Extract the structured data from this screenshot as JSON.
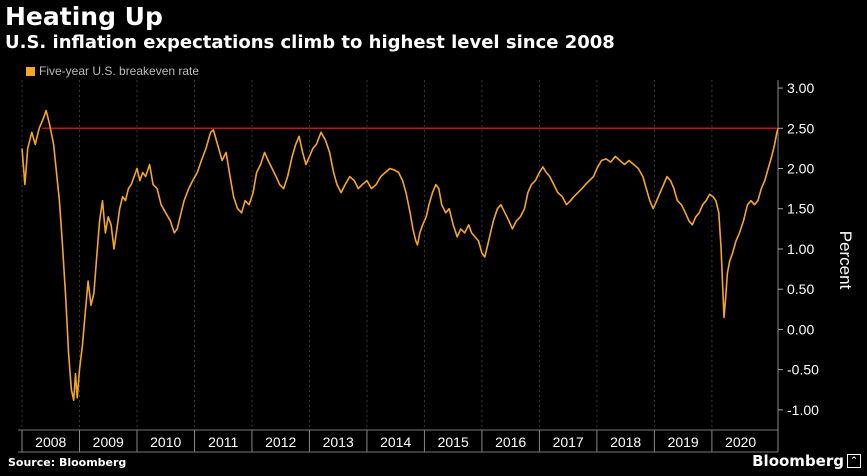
{
  "header": {
    "title": "Heating Up",
    "subtitle": "U.S. inflation expectations climb to highest level since 2008"
  },
  "footer": {
    "source": "Source: Bloomberg",
    "brand": "Bloomberg"
  },
  "colors": {
    "series": "#f5a623",
    "reference_line": "#c0141b",
    "grid": "#3a3a3a",
    "background": "#000000"
  },
  "chart_data": {
    "type": "line",
    "title": "Heating Up",
    "subtitle": "U.S. inflation expectations climb to highest level since 2008",
    "ylabel": "Percent",
    "xlabel": "",
    "ylim": [
      -1.25,
      3.1
    ],
    "y_ticks": [
      "3.00",
      "2.50",
      "2.00",
      "1.50",
      "1.00",
      "0.50",
      "0.00",
      "-0.50",
      "-1.00"
    ],
    "x_ticks": [
      "2008",
      "2009",
      "2010",
      "2011",
      "2012",
      "2013",
      "2014",
      "2015",
      "2016",
      "2017",
      "2018",
      "2019",
      "2020"
    ],
    "x_range": [
      2008.0,
      2021.15
    ],
    "grid": "vertical dashed at year boundaries",
    "legend_position": "top-left",
    "reference_line": {
      "y": 2.5,
      "label": ""
    },
    "series": [
      {
        "name": "Five-year U.S. breakeven rate",
        "points": [
          [
            2008.0,
            2.25
          ],
          [
            2008.05,
            1.8
          ],
          [
            2008.1,
            2.25
          ],
          [
            2008.17,
            2.45
          ],
          [
            2008.23,
            2.3
          ],
          [
            2008.3,
            2.5
          ],
          [
            2008.37,
            2.62
          ],
          [
            2008.42,
            2.72
          ],
          [
            2008.48,
            2.55
          ],
          [
            2008.55,
            2.3
          ],
          [
            2008.6,
            1.95
          ],
          [
            2008.65,
            1.6
          ],
          [
            2008.7,
            1.1
          ],
          [
            2008.76,
            0.4
          ],
          [
            2008.81,
            -0.3
          ],
          [
            2008.86,
            -0.75
          ],
          [
            2008.9,
            -0.88
          ],
          [
            2008.93,
            -0.55
          ],
          [
            2008.96,
            -0.85
          ],
          [
            2009.0,
            -0.5
          ],
          [
            2009.05,
            -0.2
          ],
          [
            2009.1,
            0.2
          ],
          [
            2009.15,
            0.6
          ],
          [
            2009.2,
            0.3
          ],
          [
            2009.25,
            0.45
          ],
          [
            2009.3,
            0.9
          ],
          [
            2009.35,
            1.35
          ],
          [
            2009.4,
            1.6
          ],
          [
            2009.45,
            1.2
          ],
          [
            2009.5,
            1.4
          ],
          [
            2009.55,
            1.3
          ],
          [
            2009.6,
            1.0
          ],
          [
            2009.65,
            1.25
          ],
          [
            2009.7,
            1.5
          ],
          [
            2009.75,
            1.65
          ],
          [
            2009.8,
            1.6
          ],
          [
            2009.85,
            1.75
          ],
          [
            2009.9,
            1.8
          ],
          [
            2009.95,
            1.9
          ],
          [
            2010.0,
            2.0
          ],
          [
            2010.05,
            1.85
          ],
          [
            2010.1,
            1.95
          ],
          [
            2010.15,
            1.9
          ],
          [
            2010.22,
            2.05
          ],
          [
            2010.28,
            1.8
          ],
          [
            2010.35,
            1.75
          ],
          [
            2010.42,
            1.55
          ],
          [
            2010.5,
            1.45
          ],
          [
            2010.58,
            1.35
          ],
          [
            2010.65,
            1.2
          ],
          [
            2010.7,
            1.25
          ],
          [
            2010.75,
            1.4
          ],
          [
            2010.82,
            1.6
          ],
          [
            2010.9,
            1.75
          ],
          [
            2010.97,
            1.85
          ],
          [
            2011.05,
            1.95
          ],
          [
            2011.12,
            2.1
          ],
          [
            2011.2,
            2.25
          ],
          [
            2011.28,
            2.45
          ],
          [
            2011.33,
            2.48
          ],
          [
            2011.4,
            2.3
          ],
          [
            2011.48,
            2.1
          ],
          [
            2011.55,
            2.2
          ],
          [
            2011.62,
            1.9
          ],
          [
            2011.68,
            1.65
          ],
          [
            2011.75,
            1.5
          ],
          [
            2011.82,
            1.45
          ],
          [
            2011.88,
            1.6
          ],
          [
            2011.95,
            1.55
          ],
          [
            2012.02,
            1.7
          ],
          [
            2012.08,
            1.95
          ],
          [
            2012.15,
            2.05
          ],
          [
            2012.22,
            2.2
          ],
          [
            2012.28,
            2.1
          ],
          [
            2012.35,
            2.0
          ],
          [
            2012.42,
            1.9
          ],
          [
            2012.48,
            1.8
          ],
          [
            2012.55,
            1.75
          ],
          [
            2012.62,
            1.9
          ],
          [
            2012.7,
            2.15
          ],
          [
            2012.76,
            2.3
          ],
          [
            2012.82,
            2.4
          ],
          [
            2012.88,
            2.2
          ],
          [
            2012.94,
            2.05
          ],
          [
            2013.0,
            2.15
          ],
          [
            2013.06,
            2.25
          ],
          [
            2013.12,
            2.3
          ],
          [
            2013.2,
            2.45
          ],
          [
            2013.28,
            2.35
          ],
          [
            2013.35,
            2.2
          ],
          [
            2013.42,
            1.95
          ],
          [
            2013.48,
            1.8
          ],
          [
            2013.55,
            1.7
          ],
          [
            2013.62,
            1.8
          ],
          [
            2013.7,
            1.9
          ],
          [
            2013.78,
            1.85
          ],
          [
            2013.85,
            1.75
          ],
          [
            2013.92,
            1.8
          ],
          [
            2014.0,
            1.85
          ],
          [
            2014.08,
            1.75
          ],
          [
            2014.16,
            1.8
          ],
          [
            2014.24,
            1.9
          ],
          [
            2014.32,
            1.95
          ],
          [
            2014.4,
            2.0
          ],
          [
            2014.48,
            1.98
          ],
          [
            2014.55,
            1.95
          ],
          [
            2014.62,
            1.85
          ],
          [
            2014.68,
            1.7
          ],
          [
            2014.75,
            1.45
          ],
          [
            2014.8,
            1.25
          ],
          [
            2014.85,
            1.1
          ],
          [
            2014.88,
            1.05
          ],
          [
            2014.92,
            1.2
          ],
          [
            2014.97,
            1.3
          ],
          [
            2015.03,
            1.4
          ],
          [
            2015.08,
            1.55
          ],
          [
            2015.14,
            1.7
          ],
          [
            2015.2,
            1.8
          ],
          [
            2015.25,
            1.75
          ],
          [
            2015.3,
            1.55
          ],
          [
            2015.37,
            1.45
          ],
          [
            2015.43,
            1.5
          ],
          [
            2015.5,
            1.3
          ],
          [
            2015.57,
            1.15
          ],
          [
            2015.63,
            1.25
          ],
          [
            2015.7,
            1.2
          ],
          [
            2015.77,
            1.3
          ],
          [
            2015.82,
            1.2
          ],
          [
            2015.88,
            1.15
          ],
          [
            2015.94,
            1.1
          ],
          [
            2016.0,
            0.95
          ],
          [
            2016.05,
            0.9
          ],
          [
            2016.1,
            1.05
          ],
          [
            2016.15,
            1.2
          ],
          [
            2016.2,
            1.35
          ],
          [
            2016.27,
            1.5
          ],
          [
            2016.33,
            1.55
          ],
          [
            2016.4,
            1.45
          ],
          [
            2016.47,
            1.35
          ],
          [
            2016.53,
            1.25
          ],
          [
            2016.6,
            1.35
          ],
          [
            2016.67,
            1.4
          ],
          [
            2016.74,
            1.5
          ],
          [
            2016.8,
            1.7
          ],
          [
            2016.86,
            1.8
          ],
          [
            2016.93,
            1.85
          ],
          [
            2017.0,
            1.95
          ],
          [
            2017.06,
            2.02
          ],
          [
            2017.12,
            1.95
          ],
          [
            2017.18,
            1.9
          ],
          [
            2017.25,
            1.8
          ],
          [
            2017.32,
            1.7
          ],
          [
            2017.4,
            1.65
          ],
          [
            2017.47,
            1.55
          ],
          [
            2017.54,
            1.6
          ],
          [
            2017.6,
            1.65
          ],
          [
            2017.67,
            1.7
          ],
          [
            2017.74,
            1.75
          ],
          [
            2017.8,
            1.8
          ],
          [
            2017.87,
            1.85
          ],
          [
            2017.94,
            1.9
          ],
          [
            2018.0,
            2.0
          ],
          [
            2018.08,
            2.1
          ],
          [
            2018.16,
            2.12
          ],
          [
            2018.24,
            2.08
          ],
          [
            2018.32,
            2.15
          ],
          [
            2018.4,
            2.1
          ],
          [
            2018.48,
            2.05
          ],
          [
            2018.56,
            2.1
          ],
          [
            2018.64,
            2.05
          ],
          [
            2018.72,
            2.0
          ],
          [
            2018.8,
            1.9
          ],
          [
            2018.86,
            1.75
          ],
          [
            2018.92,
            1.6
          ],
          [
            2018.98,
            1.5
          ],
          [
            2019.04,
            1.6
          ],
          [
            2019.1,
            1.7
          ],
          [
            2019.16,
            1.8
          ],
          [
            2019.22,
            1.9
          ],
          [
            2019.28,
            1.85
          ],
          [
            2019.34,
            1.75
          ],
          [
            2019.4,
            1.6
          ],
          [
            2019.47,
            1.55
          ],
          [
            2019.54,
            1.45
          ],
          [
            2019.6,
            1.35
          ],
          [
            2019.66,
            1.3
          ],
          [
            2019.72,
            1.4
          ],
          [
            2019.78,
            1.45
          ],
          [
            2019.84,
            1.55
          ],
          [
            2019.9,
            1.6
          ],
          [
            2019.96,
            1.68
          ],
          [
            2020.02,
            1.65
          ],
          [
            2020.07,
            1.6
          ],
          [
            2020.12,
            1.45
          ],
          [
            2020.16,
            1.0
          ],
          [
            2020.19,
            0.5
          ],
          [
            2020.21,
            0.15
          ],
          [
            2020.24,
            0.4
          ],
          [
            2020.27,
            0.7
          ],
          [
            2020.31,
            0.85
          ],
          [
            2020.36,
            0.95
          ],
          [
            2020.42,
            1.1
          ],
          [
            2020.48,
            1.2
          ],
          [
            2020.55,
            1.35
          ],
          [
            2020.62,
            1.55
          ],
          [
            2020.68,
            1.6
          ],
          [
            2020.74,
            1.55
          ],
          [
            2020.8,
            1.6
          ],
          [
            2020.86,
            1.75
          ],
          [
            2020.92,
            1.85
          ],
          [
            2020.98,
            2.0
          ],
          [
            2021.04,
            2.15
          ],
          [
            2021.09,
            2.3
          ],
          [
            2021.13,
            2.45
          ],
          [
            2021.15,
            2.5
          ]
        ]
      }
    ]
  }
}
